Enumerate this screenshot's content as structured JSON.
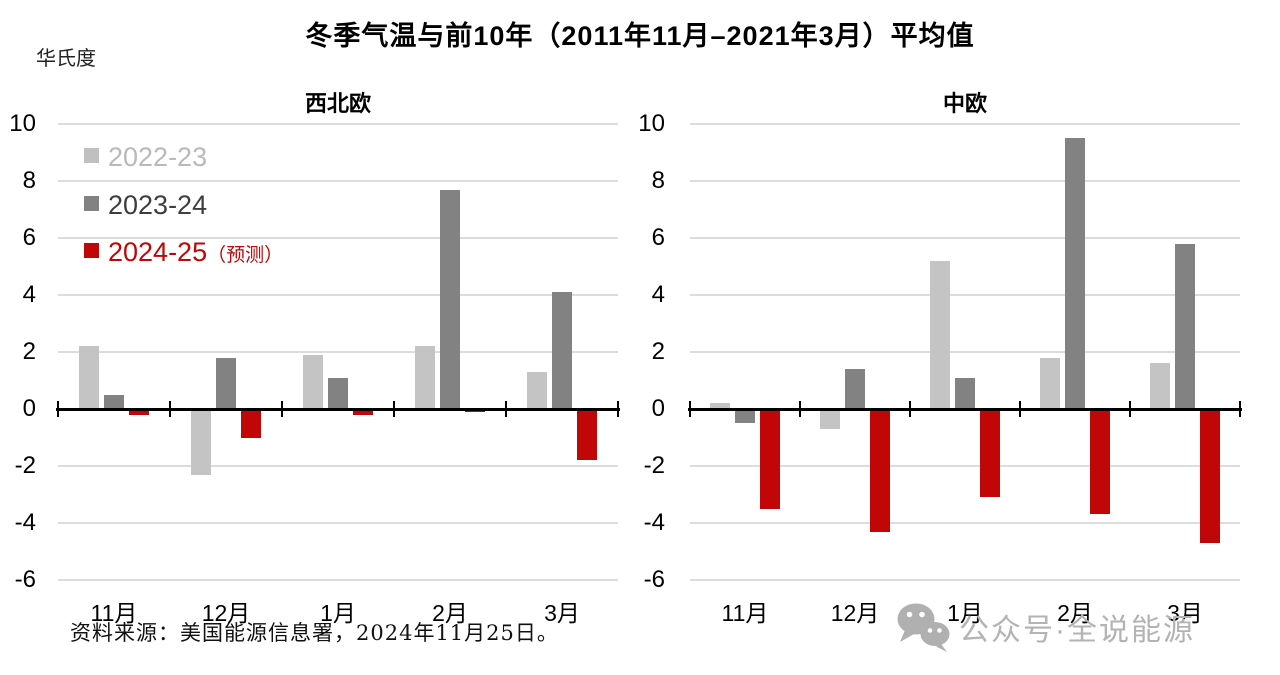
{
  "title": "冬季气温与前10年（2011年11月–2021年3月）平均值",
  "y_axis_unit": "华氏度",
  "source": "资料来源：美国能源信息署，2024年11月25日。",
  "watermark": {
    "icon": "wechat-icon",
    "text": "公众号·全说能源"
  },
  "legend": [
    {
      "label": "2022-23",
      "suffix": "",
      "swatch_color": "#c0c0c0",
      "text_color": "#b9b9b9"
    },
    {
      "label": "2023-24",
      "suffix": "",
      "swatch_color": "#828282",
      "text_color": "#3d3d3d"
    },
    {
      "label": "2024-25",
      "suffix": "（预测）",
      "swatch_color": "#c00606",
      "text_color": "#c00606"
    }
  ],
  "chart_data": [
    {
      "type": "bar",
      "title": "西北欧",
      "categories": [
        "11月",
        "12月",
        "1月",
        "2月",
        "3月"
      ],
      "series": [
        {
          "name": "2022-23",
          "color": "#c4c4c4",
          "values": [
            2.2,
            -2.3,
            1.9,
            2.2,
            1.3
          ]
        },
        {
          "name": "2023-24",
          "color": "#828282",
          "values": [
            0.5,
            1.8,
            1.1,
            7.7,
            4.1
          ]
        },
        {
          "name": "2024-25（预测）",
          "color": "#c00606",
          "values": [
            -0.2,
            -1.0,
            -0.2,
            -0.1,
            -1.8
          ]
        }
      ],
      "ylim": [
        -6,
        10
      ],
      "ytick_step": 2,
      "grid": true,
      "legend_position": "top-left"
    },
    {
      "type": "bar",
      "title": "中欧",
      "categories": [
        "11月",
        "12月",
        "1月",
        "2月",
        "3月"
      ],
      "series": [
        {
          "name": "2022-23",
          "color": "#c4c4c4",
          "values": [
            0.2,
            -0.7,
            5.2,
            1.8,
            1.6
          ]
        },
        {
          "name": "2023-24",
          "color": "#828282",
          "values": [
            -0.5,
            1.4,
            1.1,
            9.5,
            5.8
          ]
        },
        {
          "name": "2024-25（预测）",
          "color": "#c00606",
          "values": [
            -3.5,
            -4.3,
            -3.1,
            -3.7,
            -4.7
          ]
        }
      ],
      "ylim": [
        -6,
        10
      ],
      "ytick_step": 2,
      "grid": true
    }
  ]
}
